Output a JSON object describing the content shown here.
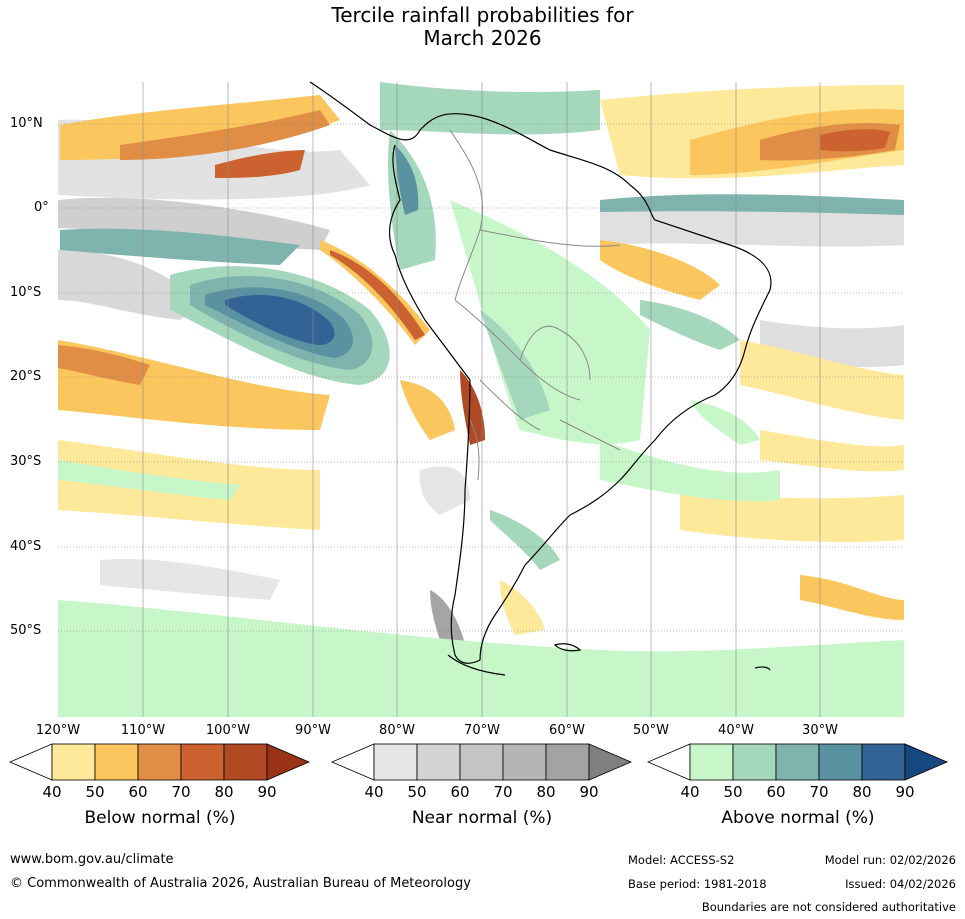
{
  "title_line1": "Tercile rainfall probabilities for",
  "title_line2": "March 2026",
  "lat_labels": [
    "10°N",
    "0°",
    "10°S",
    "20°S",
    "30°S",
    "40°S",
    "50°S"
  ],
  "lon_labels": [
    "120°W",
    "110°W",
    "100°W",
    "90°W",
    "80°W",
    "70°W",
    "60°W",
    "50°W",
    "40°W",
    "30°W"
  ],
  "colorbars": [
    {
      "label": "Below normal (%)",
      "ticks": [
        "40",
        "50",
        "60",
        "70",
        "80",
        "90"
      ],
      "colors": [
        "#ffffff",
        "#fee89a",
        "#fcc65e",
        "#e08e45",
        "#cc6230",
        "#b04a25",
        "#9a3318"
      ]
    },
    {
      "label": "Near normal (%)",
      "ticks": [
        "40",
        "50",
        "60",
        "70",
        "80",
        "90"
      ],
      "colors": [
        "#ffffff",
        "#e6e6e6",
        "#d4d4d4",
        "#c4c4c4",
        "#b5b5b5",
        "#a3a3a3",
        "#808080"
      ]
    },
    {
      "label": "Above normal (%)",
      "ticks": [
        "40",
        "50",
        "60",
        "70",
        "80",
        "90"
      ],
      "colors": [
        "#ffffff",
        "#c7f7c9",
        "#a4d7bb",
        "#7eb4ad",
        "#5a92a1",
        "#336395",
        "#16477e"
      ]
    }
  ],
  "footer": {
    "website": "www.bom.gov.au/climate",
    "copyright": "© Commonwealth of Australia 2026, Australian Bureau of Meteorology",
    "model": "Model: ACCESS-S2",
    "base_period": "Base period: 1981-2018",
    "model_run": "Model run: 02/02/2026",
    "issued": "Issued: 04/02/2026",
    "disclaimer": "Boundaries are not considered authoritative"
  }
}
